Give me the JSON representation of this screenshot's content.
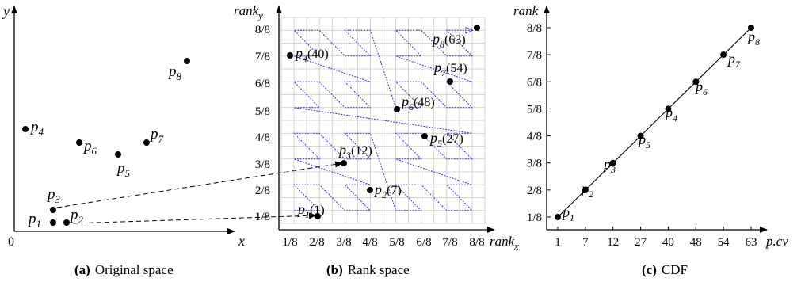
{
  "panel_a": {
    "x_axis_label": "x",
    "y_axis_label": "y",
    "origin_label": "0",
    "caption_tag": "(a)",
    "caption_text": "Original space",
    "points": [
      {
        "name": "p",
        "sub": "1"
      },
      {
        "name": "p",
        "sub": "2"
      },
      {
        "name": "p",
        "sub": "3"
      },
      {
        "name": "p",
        "sub": "4"
      },
      {
        "name": "p",
        "sub": "5"
      },
      {
        "name": "p",
        "sub": "6"
      },
      {
        "name": "p",
        "sub": "7"
      },
      {
        "name": "p",
        "sub": "8"
      }
    ]
  },
  "panel_b": {
    "x_axis_label": "rank",
    "x_axis_sub": "x",
    "y_axis_label": "rank",
    "y_axis_sub": "y",
    "caption_tag": "(b)",
    "caption_text": "Rank space",
    "tick_labels": [
      "1/8",
      "2/8",
      "3/8",
      "4/8",
      "5/8",
      "6/8",
      "7/8",
      "8/8"
    ],
    "points": [
      {
        "name": "p",
        "sub": "1",
        "value": "(1)"
      },
      {
        "name": "p",
        "sub": "2",
        "value": "(7)"
      },
      {
        "name": "p",
        "sub": "3",
        "value": "(12)"
      },
      {
        "name": "p",
        "sub": "4",
        "value": "(40)"
      },
      {
        "name": "p",
        "sub": "5",
        "value": "(27)"
      },
      {
        "name": "p",
        "sub": "6",
        "value": "(48)"
      },
      {
        "name": "p",
        "sub": "7",
        "value": "(54)"
      },
      {
        "name": "p",
        "sub": "8",
        "value": "(63)"
      }
    ],
    "curve_color": "#3333cc"
  },
  "panel_c": {
    "y_axis_label": "rank",
    "x_axis_label": "p.cv",
    "caption_tag": "(c)",
    "caption_text": "CDF",
    "y_tick_labels": [
      "1/8",
      "2/8",
      "3/8",
      "4/8",
      "5/8",
      "6/8",
      "7/8",
      "8/8"
    ],
    "x_tick_labels": [
      "1",
      "7",
      "12",
      "27",
      "40",
      "48",
      "54",
      "63"
    ],
    "points": [
      {
        "name": "p",
        "sub": "1"
      },
      {
        "name": "p",
        "sub": "2"
      },
      {
        "name": "p",
        "sub": "3"
      },
      {
        "name": "p",
        "sub": "5"
      },
      {
        "name": "p",
        "sub": "4"
      },
      {
        "name": "p",
        "sub": "6"
      },
      {
        "name": "p",
        "sub": "7"
      },
      {
        "name": "p",
        "sub": "8"
      }
    ]
  },
  "chart_data": {
    "type": "line",
    "title": "",
    "xlabel": "p.cv",
    "ylabel": "rank",
    "x": [
      1,
      7,
      12,
      27,
      40,
      48,
      54,
      63
    ],
    "y": [
      0.125,
      0.25,
      0.375,
      0.5,
      0.625,
      0.75,
      0.875,
      1.0
    ],
    "point_labels": [
      "p1",
      "p2",
      "p3",
      "p5",
      "p4",
      "p6",
      "p7",
      "p8"
    ],
    "ylim": [
      0.125,
      1.0
    ]
  }
}
